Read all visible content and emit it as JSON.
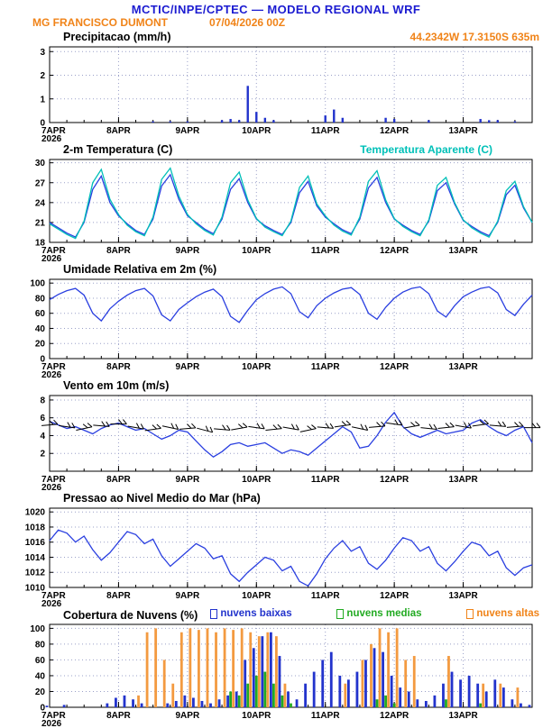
{
  "header": {
    "title": "MCTIC/INPE/CPTEC — MODELO REGIONAL WRF",
    "station": "MG FRANCISCO DUMONT",
    "run": "07/04/2026 00Z",
    "location": "44.2342W 17.3150S 635m"
  },
  "colors": {
    "header_blue": "#1b1bd1",
    "orange": "#f08318",
    "grid": "#9aa0c8"
  },
  "x_axis": {
    "range": [
      0,
      168
    ],
    "ticks": [
      0,
      24,
      48,
      72,
      96,
      120,
      144
    ],
    "labels": [
      "7APR",
      "8APR",
      "9APR",
      "10APR",
      "11APR",
      "12APR",
      "13APR"
    ],
    "year_label": "2026"
  },
  "hours": [
    0,
    3,
    6,
    9,
    12,
    15,
    18,
    21,
    24,
    27,
    30,
    33,
    36,
    39,
    42,
    45,
    48,
    51,
    54,
    57,
    60,
    63,
    66,
    69,
    72,
    75,
    78,
    81,
    84,
    87,
    90,
    93,
    96,
    99,
    102,
    105,
    108,
    111,
    114,
    117,
    120,
    123,
    126,
    129,
    132,
    135,
    138,
    141,
    144,
    147,
    150,
    153,
    156,
    159,
    162,
    165,
    168
  ],
  "chart_data": [
    {
      "id": "precipitacao",
      "title": "Precipitacao (mm/h)",
      "type": "bar",
      "ylim": [
        0,
        3.2
      ],
      "yticks": [
        0,
        1,
        2,
        3
      ],
      "series": [
        {
          "name": "precipitacao",
          "color": "#2233cc",
          "type": "bar",
          "points": [
            [
              36,
              0.05
            ],
            [
              42,
              0.05
            ],
            [
              48,
              0.05
            ],
            [
              60,
              0.1
            ],
            [
              63,
              0.15
            ],
            [
              66,
              0.1
            ],
            [
              69,
              1.55
            ],
            [
              72,
              0.45
            ],
            [
              75,
              0.2
            ],
            [
              78,
              0.1
            ],
            [
              96,
              0.3
            ],
            [
              99,
              0.55
            ],
            [
              102,
              0.2
            ],
            [
              117,
              0.2
            ],
            [
              120,
              0.15
            ],
            [
              132,
              0.1
            ],
            [
              150,
              0.15
            ],
            [
              153,
              0.1
            ],
            [
              156,
              0.1
            ],
            [
              162,
              0.05
            ]
          ]
        }
      ]
    },
    {
      "id": "temperatura",
      "title": "2-m Temperatura (C)",
      "type": "line",
      "ylim": [
        18,
        30.5
      ],
      "yticks": [
        18,
        21,
        24,
        27,
        30
      ],
      "legend": {
        "label": "Temperatura Aparente (C)",
        "color": "#00c0b8"
      },
      "series": [
        {
          "name": "temperatura-2m",
          "color": "#2a3fe0",
          "type": "line",
          "values": [
            21.0,
            20.2,
            19.4,
            18.8,
            21.0,
            26.0,
            28.0,
            24.0,
            22.0,
            20.8,
            19.8,
            19.2,
            21.5,
            26.5,
            28.2,
            24.5,
            22.0,
            21.0,
            20.0,
            19.3,
            21.5,
            26.0,
            27.6,
            24.0,
            21.5,
            20.5,
            19.8,
            19.2,
            21.0,
            25.5,
            27.2,
            23.5,
            21.8,
            20.8,
            19.9,
            19.3,
            21.5,
            26.2,
            27.8,
            24.0,
            21.5,
            20.6,
            19.8,
            19.2,
            21.2,
            25.8,
            27.0,
            23.8,
            21.3,
            20.4,
            19.6,
            19.0,
            21.0,
            25.2,
            26.6,
            23.2,
            21.0
          ]
        },
        {
          "name": "temperatura-aparente",
          "color": "#00c0b8",
          "type": "line",
          "values": [
            20.8,
            20.0,
            19.2,
            18.6,
            21.2,
            27.0,
            29.0,
            24.5,
            22.2,
            20.6,
            19.6,
            19.0,
            21.8,
            27.5,
            29.2,
            25.0,
            22.2,
            20.8,
            19.8,
            19.1,
            21.8,
            27.0,
            28.6,
            24.4,
            21.6,
            20.3,
            19.6,
            19.0,
            21.2,
            26.3,
            28.0,
            23.8,
            22.0,
            20.6,
            19.7,
            19.1,
            21.8,
            27.2,
            28.8,
            24.4,
            21.6,
            20.4,
            19.6,
            19.0,
            21.4,
            26.6,
            27.8,
            24.0,
            21.4,
            20.2,
            19.4,
            18.8,
            21.2,
            25.8,
            27.2,
            23.4,
            21.0
          ]
        }
      ]
    },
    {
      "id": "umidade",
      "title": "Umidade Relativa em 2m (%)",
      "type": "line",
      "ylim": [
        0,
        105
      ],
      "yticks": [
        0,
        20,
        40,
        60,
        80,
        100
      ],
      "series": [
        {
          "name": "umidade-relativa",
          "color": "#2a3fe0",
          "type": "line",
          "values": [
            78,
            85,
            90,
            93,
            84,
            60,
            50,
            66,
            76,
            84,
            90,
            93,
            83,
            58,
            50,
            65,
            74,
            82,
            88,
            92,
            82,
            56,
            48,
            64,
            78,
            86,
            92,
            95,
            86,
            62,
            54,
            70,
            80,
            87,
            92,
            94,
            85,
            60,
            52,
            68,
            80,
            88,
            93,
            95,
            86,
            63,
            55,
            70,
            82,
            88,
            93,
            95,
            87,
            65,
            57,
            72,
            84
          ]
        }
      ]
    },
    {
      "id": "vento",
      "title": "Vento em 10m (m/s)",
      "type": "line",
      "ylim": [
        0,
        8.5
      ],
      "yticks": [
        2,
        4,
        6,
        8
      ],
      "series": [
        {
          "name": "velocidade-vento",
          "color": "#2a3fe0",
          "type": "line",
          "values": [
            5.6,
            5.2,
            4.8,
            5.0,
            4.6,
            4.2,
            4.8,
            5.2,
            5.4,
            5.0,
            4.6,
            4.8,
            4.2,
            3.6,
            4.0,
            4.6,
            4.4,
            3.4,
            2.4,
            1.6,
            2.2,
            3.0,
            3.2,
            2.8,
            3.0,
            3.2,
            2.6,
            2.0,
            2.4,
            2.2,
            1.8,
            2.6,
            3.4,
            4.2,
            5.0,
            4.4,
            2.6,
            2.8,
            4.0,
            5.5,
            6.6,
            5.0,
            4.2,
            3.8,
            4.2,
            4.6,
            4.2,
            4.4,
            4.6,
            5.4,
            5.8,
            5.0,
            4.4,
            4.0,
            4.6,
            5.0,
            3.2
          ]
        }
      ],
      "barbs": [
        [
          0,
          5.2,
          -5
        ],
        [
          6,
          5.0,
          8
        ],
        [
          12,
          4.8,
          -12
        ],
        [
          18,
          5.1,
          5
        ],
        [
          24,
          5.3,
          0
        ],
        [
          30,
          4.9,
          10
        ],
        [
          36,
          4.7,
          -8
        ],
        [
          42,
          4.9,
          12
        ],
        [
          48,
          4.8,
          -5
        ],
        [
          54,
          4.6,
          15
        ],
        [
          60,
          4.7,
          5
        ],
        [
          66,
          4.8,
          -10
        ],
        [
          72,
          4.9,
          8
        ],
        [
          78,
          4.7,
          -6
        ],
        [
          84,
          4.8,
          10
        ],
        [
          90,
          4.6,
          -12
        ],
        [
          96,
          4.9,
          5
        ],
        [
          102,
          5.1,
          -8
        ],
        [
          108,
          4.8,
          12
        ],
        [
          114,
          5.0,
          -5
        ],
        [
          120,
          5.3,
          8
        ],
        [
          126,
          5.0,
          -10
        ],
        [
          132,
          4.8,
          6
        ],
        [
          138,
          4.9,
          -6
        ],
        [
          144,
          5.0,
          10
        ],
        [
          150,
          5.2,
          -8
        ],
        [
          156,
          5.1,
          5
        ],
        [
          162,
          5.0,
          -5
        ],
        [
          168,
          4.9,
          0
        ]
      ]
    },
    {
      "id": "pressao",
      "title": "Pressao ao Nivel Medio do Mar (hPa)",
      "type": "line",
      "ylim": [
        1010,
        1020.5
      ],
      "yticks": [
        1010,
        1012,
        1014,
        1016,
        1018,
        1020
      ],
      "series": [
        {
          "name": "pressao-nivel-mar",
          "color": "#2a3fe0",
          "type": "line",
          "values": [
            1016.2,
            1017.6,
            1017.2,
            1016.0,
            1016.8,
            1015.0,
            1013.6,
            1014.6,
            1016.0,
            1017.4,
            1017.0,
            1015.8,
            1016.4,
            1014.2,
            1012.8,
            1013.8,
            1014.8,
            1015.8,
            1015.2,
            1013.8,
            1014.2,
            1011.8,
            1010.8,
            1012.0,
            1013.0,
            1014.0,
            1013.6,
            1012.2,
            1012.8,
            1010.8,
            1010.2,
            1011.8,
            1013.8,
            1015.2,
            1016.2,
            1014.8,
            1015.4,
            1013.2,
            1012.4,
            1013.6,
            1015.2,
            1016.6,
            1016.2,
            1014.8,
            1015.4,
            1013.2,
            1012.2,
            1013.4,
            1014.8,
            1016.0,
            1015.6,
            1014.2,
            1014.8,
            1012.6,
            1011.6,
            1012.6,
            1013.0
          ]
        }
      ]
    },
    {
      "id": "nuvens",
      "title": "Cobertura de Nuvens (%)",
      "type": "bar",
      "ylim": [
        0,
        105
      ],
      "yticks": [
        0,
        20,
        40,
        60,
        80,
        100
      ],
      "legend": [
        {
          "label": "nuvens baixas",
          "color": "#2233cc"
        },
        {
          "label": "nuvens medias",
          "color": "#22aa22"
        },
        {
          "label": "nuvens altas",
          "color": "#f08318"
        }
      ],
      "series": [
        {
          "name": "nuvens-baixas",
          "color": "#2233cc",
          "type": "bar",
          "values": [
            2,
            0,
            3,
            0,
            0,
            0,
            0,
            5,
            12,
            15,
            10,
            5,
            0,
            0,
            5,
            8,
            15,
            12,
            8,
            5,
            10,
            15,
            20,
            60,
            75,
            90,
            95,
            65,
            20,
            10,
            30,
            45,
            60,
            70,
            40,
            35,
            45,
            60,
            75,
            70,
            40,
            25,
            20,
            10,
            8,
            15,
            30,
            45,
            35,
            40,
            30,
            20,
            35,
            25,
            10,
            5,
            3
          ]
        },
        {
          "name": "nuvens-medias",
          "color": "#22aa22",
          "type": "bar",
          "values": [
            0,
            0,
            0,
            0,
            0,
            0,
            0,
            0,
            0,
            0,
            0,
            0,
            0,
            0,
            0,
            0,
            0,
            0,
            0,
            0,
            0,
            20,
            15,
            30,
            40,
            45,
            30,
            15,
            5,
            0,
            0,
            0,
            0,
            0,
            0,
            0,
            0,
            0,
            10,
            15,
            5,
            0,
            0,
            0,
            0,
            0,
            10,
            0,
            0,
            0,
            5,
            0,
            0,
            0,
            0,
            0,
            0
          ]
        },
        {
          "name": "nuvens-altas",
          "color": "#f39a40",
          "type": "bar",
          "values": [
            0,
            0,
            0,
            0,
            0,
            0,
            0,
            0,
            0,
            0,
            15,
            95,
            100,
            60,
            30,
            95,
            100,
            98,
            100,
            95,
            100,
            98,
            100,
            95,
            90,
            95,
            90,
            30,
            0,
            0,
            0,
            0,
            0,
            0,
            30,
            0,
            60,
            80,
            100,
            95,
            100,
            60,
            65,
            0,
            0,
            0,
            65,
            0,
            0,
            0,
            30,
            0,
            30,
            0,
            25,
            0,
            0
          ]
        }
      ]
    }
  ]
}
